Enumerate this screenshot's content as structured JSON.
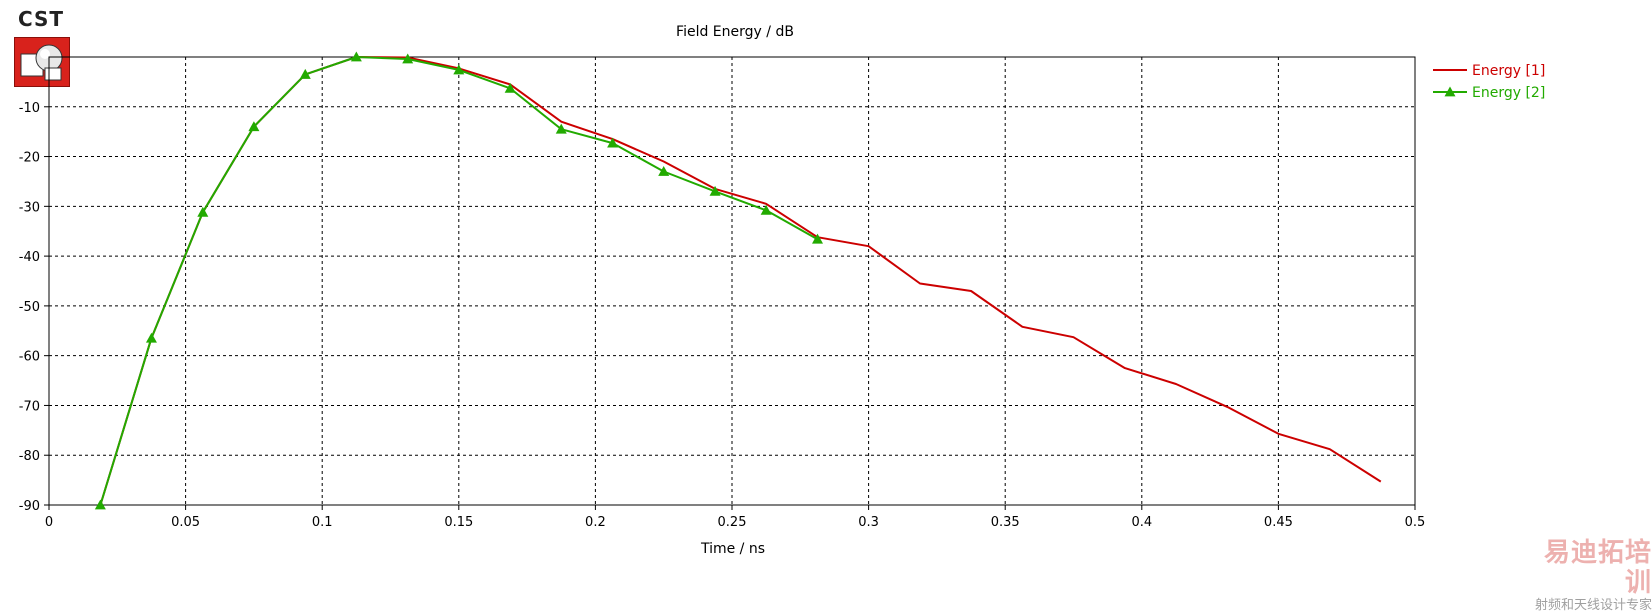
{
  "logo": {
    "text": "CST"
  },
  "chart_data": {
    "type": "line",
    "title": "Field Energy / dB",
    "xlabel": "Time / ns",
    "ylabel": "",
    "xlim": [
      0,
      0.5
    ],
    "ylim": [
      -90,
      0
    ],
    "xticks": [
      0,
      0.05,
      0.1,
      0.15,
      0.2,
      0.25,
      0.3,
      0.35,
      0.4,
      0.45,
      0.5
    ],
    "xtick_labels": [
      "0",
      "0.05",
      "0.1",
      "0.15",
      "0.2",
      "0.25",
      "0.3",
      "0.35",
      "0.4",
      "0.45",
      "0.5"
    ],
    "yticks": [
      -10,
      -20,
      -30,
      -40,
      -50,
      -60,
      -70,
      -80,
      -90
    ],
    "ytick_labels": [
      "-10",
      "-20",
      "-30",
      "-40",
      "-50",
      "-60",
      "-70",
      "-80",
      "-90"
    ],
    "grid": true,
    "legend_position": "top-right outside",
    "series": [
      {
        "name": "Energy [1]",
        "color": "#cc0000",
        "marker": "none",
        "points": [
          [
            0.0188,
            -90
          ],
          [
            0.0375,
            -56.5
          ],
          [
            0.0563,
            -31.2
          ],
          [
            0.075,
            -14
          ],
          [
            0.0938,
            -3.5
          ],
          [
            0.1125,
            0
          ],
          [
            0.1313,
            -0.1
          ],
          [
            0.15,
            -2.3
          ],
          [
            0.1688,
            -5.5
          ],
          [
            0.1875,
            -13
          ],
          [
            0.2063,
            -16.5
          ],
          [
            0.225,
            -21
          ],
          [
            0.2438,
            -26.5
          ],
          [
            0.2625,
            -29.5
          ],
          [
            0.2813,
            -36.2
          ],
          [
            0.3,
            -38
          ],
          [
            0.3188,
            -45.5
          ],
          [
            0.3375,
            -47
          ],
          [
            0.3563,
            -54.2
          ],
          [
            0.375,
            -56.3
          ],
          [
            0.3938,
            -62.5
          ],
          [
            0.4125,
            -65.7
          ],
          [
            0.4313,
            -70.3
          ],
          [
            0.45,
            -75.7
          ],
          [
            0.4688,
            -78.8
          ],
          [
            0.4875,
            -85.3
          ]
        ]
      },
      {
        "name": "Energy [2]",
        "color": "#22aa00",
        "marker": "triangle",
        "points": [
          [
            0.0188,
            -90
          ],
          [
            0.0375,
            -56.5
          ],
          [
            0.0563,
            -31.2
          ],
          [
            0.075,
            -14
          ],
          [
            0.0938,
            -3.5
          ],
          [
            0.1125,
            0
          ],
          [
            0.1313,
            -0.4
          ],
          [
            0.15,
            -2.6
          ],
          [
            0.1688,
            -6.3
          ],
          [
            0.1875,
            -14.5
          ],
          [
            0.2063,
            -17.3
          ],
          [
            0.225,
            -23
          ],
          [
            0.2438,
            -27
          ],
          [
            0.2625,
            -30.8
          ],
          [
            0.2813,
            -36.6
          ]
        ]
      }
    ]
  },
  "watermark": {
    "main": "易迪拓培训",
    "sub": "射频和天线设计专家"
  }
}
